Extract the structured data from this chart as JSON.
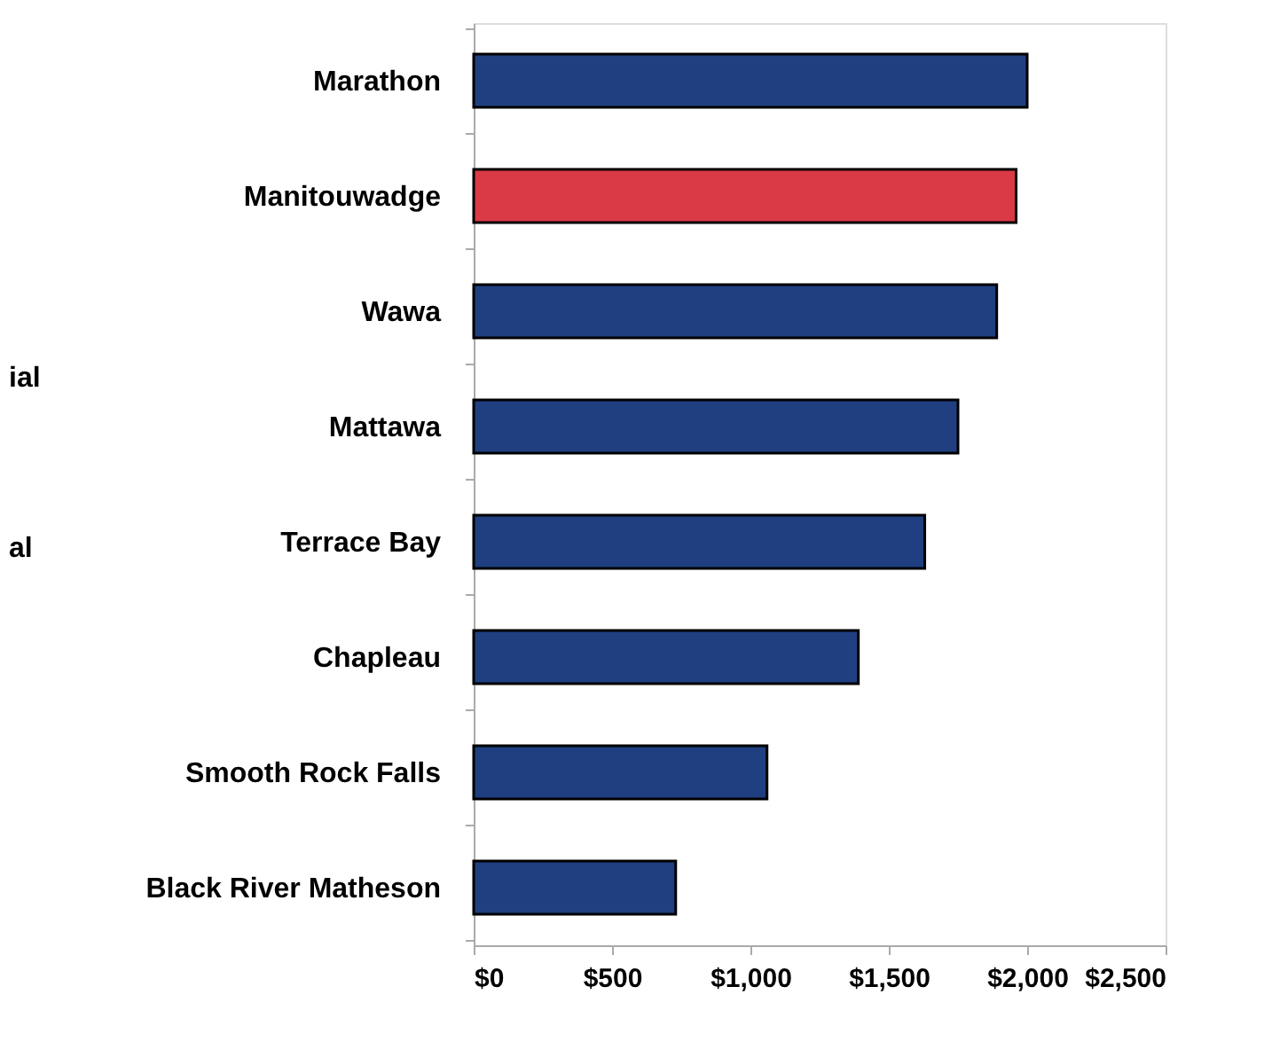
{
  "chart_data": {
    "type": "bar",
    "orientation": "horizontal",
    "categories": [
      "Marathon",
      "Manitouwadge",
      "Wawa",
      "Mattawa",
      "Terrace Bay",
      "Chapleau",
      "Smooth Rock Falls",
      "Black River Matheson"
    ],
    "values": [
      2000,
      1960,
      1890,
      1750,
      1630,
      1390,
      1060,
      730
    ],
    "colors": [
      "#1f3f80",
      "#d93a45",
      "#1f3f80",
      "#1f3f80",
      "#1f3f80",
      "#1f3f80",
      "#1f3f80",
      "#1f3f80"
    ],
    "xlim": [
      0,
      2500
    ],
    "xticks": [
      {
        "value": 0,
        "label": "$0"
      },
      {
        "value": 500,
        "label": "$500"
      },
      {
        "value": 1000,
        "label": "$1,000"
      },
      {
        "value": 1500,
        "label": "$1,500"
      },
      {
        "value": 2000,
        "label": "$2,000"
      },
      {
        "value": 2500,
        "label": "$2,500"
      }
    ],
    "annotations": [
      "ial",
      "al"
    ],
    "grid": false
  }
}
